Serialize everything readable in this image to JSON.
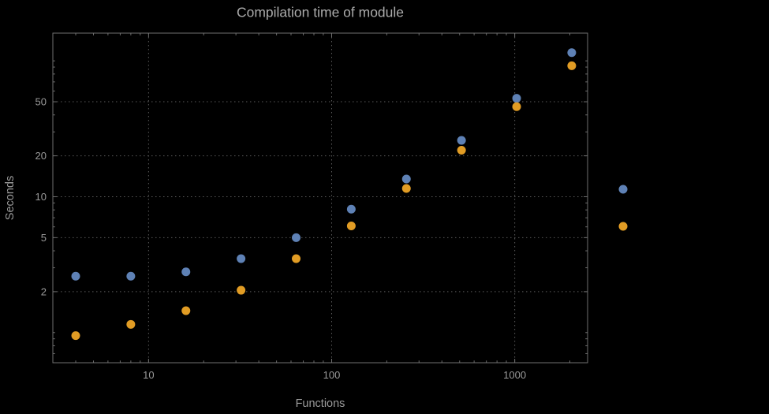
{
  "chart_data": {
    "type": "scatter",
    "title": "Compilation time of module",
    "xlabel": "Functions",
    "ylabel": "Seconds",
    "x_scale": "log",
    "y_scale": "log",
    "xlim": [
      3,
      2500
    ],
    "ylim": [
      0.6,
      160
    ],
    "grid": "dotted",
    "x": [
      4,
      8,
      16,
      32,
      64,
      128,
      256,
      512,
      1024,
      2048
    ],
    "series": [
      {
        "label": "",
        "color": "#5e81b5",
        "values": [
          2.6,
          2.6,
          2.8,
          3.5,
          5.0,
          8.1,
          13.5,
          26,
          53,
          115
        ]
      },
      {
        "label": "",
        "color": "#e19c24",
        "values": [
          0.95,
          1.15,
          1.45,
          2.05,
          3.5,
          6.1,
          11.5,
          22,
          46,
          92
        ]
      }
    ],
    "x_ticks": {
      "values": [
        10,
        100,
        1000
      ],
      "labels": [
        "10",
        "100",
        "1000"
      ]
    },
    "y_ticks": {
      "values": [
        2,
        5,
        10,
        20,
        50
      ],
      "labels": [
        "2",
        "5",
        "10",
        "20",
        "50"
      ]
    },
    "legend": {
      "position": "right-outside",
      "labels_visible": false,
      "items": [
        {
          "color": "#5e81b5"
        },
        {
          "color": "#e19c24"
        }
      ]
    },
    "colors": {
      "background": "#000000",
      "frame": "#6f6f6f",
      "grid": "#5a5a5a",
      "text": "#9a9a9a",
      "title": "#ababab"
    }
  }
}
